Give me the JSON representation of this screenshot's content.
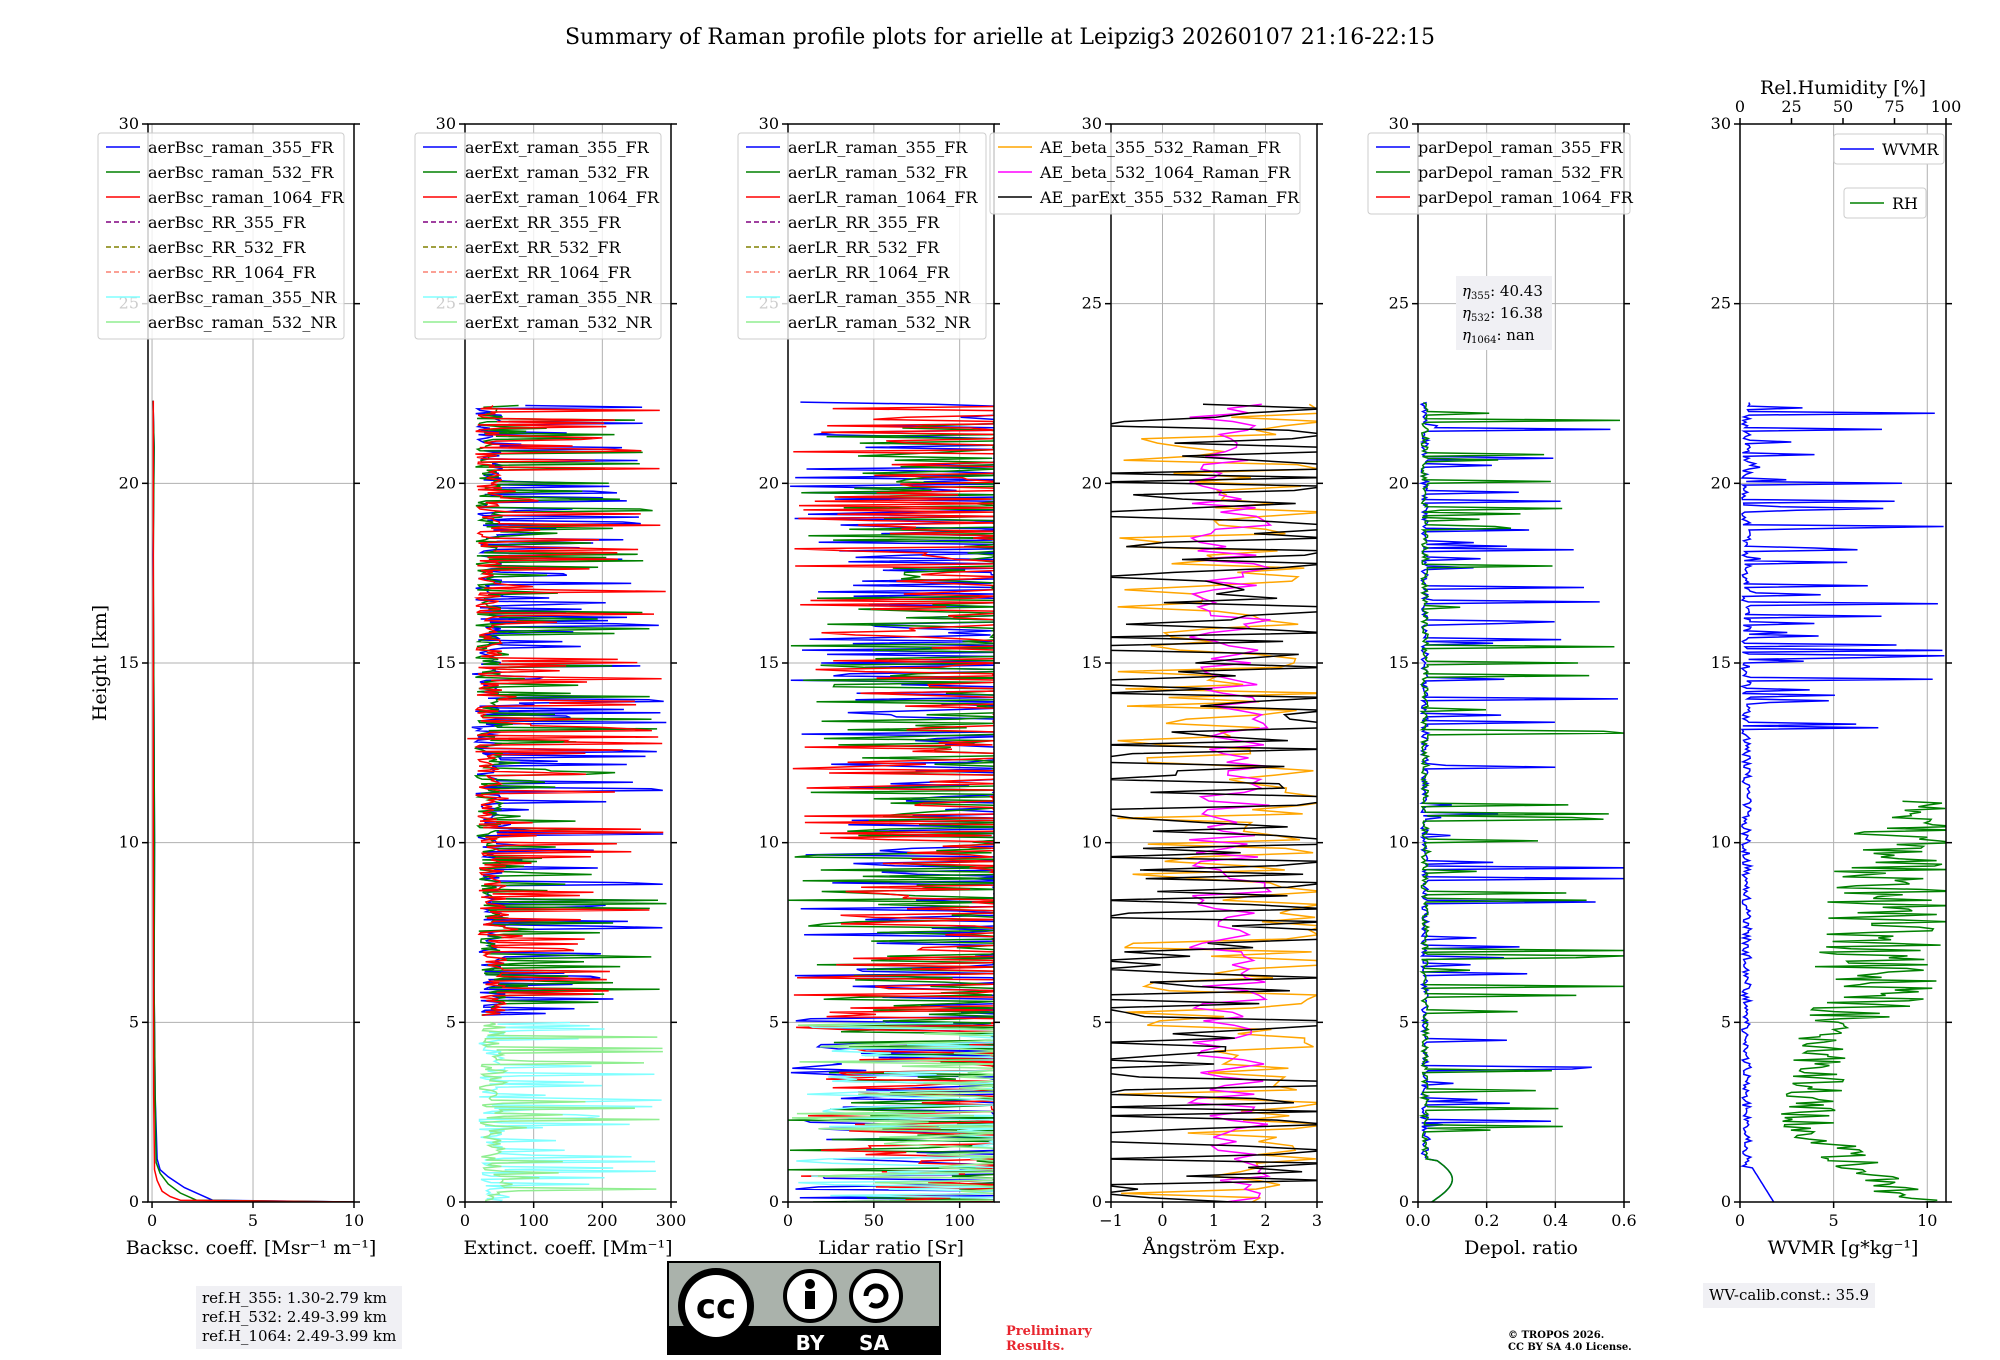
{
  "title": "Summary of Raman profile plots for arielle at Leipzig3 20260107 21:16-22:15",
  "colors": {
    "blue": "#0000ff",
    "green": "#008000",
    "red": "#ff0000",
    "purple": "#800080",
    "olive": "#808000",
    "salmon": "#fa8072",
    "cyan": "#80ffff",
    "lightgreen": "#90ee90",
    "orange": "#ffa500",
    "magenta": "#ff00ff",
    "black": "#000000",
    "grid": "#b0b0b0"
  },
  "chart_data": [
    {
      "type": "line",
      "id": "bsc",
      "xlabel": "Backsc. coeff. [Msr⁻¹ m⁻¹]",
      "ylabel": "Height [km]",
      "xlim": [
        -0.2,
        10
      ],
      "ylim": [
        0,
        30
      ],
      "xticks": [
        0,
        5,
        10
      ],
      "yticks": [
        0,
        5,
        10,
        15,
        20,
        25,
        30
      ],
      "legend": [
        {
          "label": "aerBsc_raman_355_FR",
          "color": "blue",
          "style": "solid"
        },
        {
          "label": "aerBsc_raman_532_FR",
          "color": "green",
          "style": "solid"
        },
        {
          "label": "aerBsc_raman_1064_FR",
          "color": "red",
          "style": "solid"
        },
        {
          "label": "aerBsc_RR_355_FR",
          "color": "purple",
          "style": "dashed"
        },
        {
          "label": "aerBsc_RR_532_FR",
          "color": "olive",
          "style": "dashed"
        },
        {
          "label": "aerBsc_RR_1064_FR",
          "color": "salmon",
          "style": "dashed"
        },
        {
          "label": "aerBsc_raman_355_NR",
          "color": "cyan",
          "style": "solid"
        },
        {
          "label": "aerBsc_raman_532_NR",
          "color": "lightgreen",
          "style": "solid"
        }
      ],
      "series": [
        {
          "name": "aerBsc_raman_355_FR",
          "color": "blue",
          "x": [
            10,
            3,
            2.4,
            1.6,
            0.8,
            0.4,
            0.25,
            0.15,
            0.1,
            0.12,
            0.08,
            0.05,
            0.1,
            0.05
          ],
          "y": [
            0,
            0.05,
            0.2,
            0.4,
            0.7,
            0.9,
            1.2,
            3,
            6,
            10,
            15,
            18,
            21,
            22.3
          ]
        },
        {
          "name": "aerBsc_raman_532_FR",
          "color": "green",
          "x": [
            10,
            2.2,
            1.4,
            0.8,
            0.4,
            0.2,
            0.15,
            0.1,
            0.12,
            0.08,
            0.06,
            0.1,
            0.05
          ],
          "y": [
            0,
            0.05,
            0.25,
            0.5,
            0.8,
            1.1,
            3,
            6,
            10,
            15,
            18,
            21,
            22.3
          ]
        },
        {
          "name": "aerBsc_raman_1064_FR",
          "color": "red",
          "x": [
            10,
            1.4,
            0.9,
            0.5,
            0.25,
            0.12,
            0.08,
            0.06,
            0.06,
            0.06
          ],
          "y": [
            0,
            0.05,
            0.15,
            0.3,
            0.6,
            0.9,
            3,
            10,
            18,
            22.3
          ]
        }
      ]
    },
    {
      "type": "line",
      "id": "ext",
      "xlabel": "Extinct. coeff. [Mm⁻¹]",
      "ylabel": "",
      "xlim": [
        0,
        300
      ],
      "ylim": [
        0,
        30
      ],
      "xticks": [
        0,
        100,
        200,
        300
      ],
      "yticks": [
        0,
        5,
        10,
        15,
        20,
        25,
        30
      ],
      "legend": [
        {
          "label": "aerExt_raman_355_FR",
          "color": "blue",
          "style": "solid"
        },
        {
          "label": "aerExt_raman_532_FR",
          "color": "green",
          "style": "solid"
        },
        {
          "label": "aerExt_raman_1064_FR",
          "color": "red",
          "style": "solid"
        },
        {
          "label": "aerExt_RR_355_FR",
          "color": "purple",
          "style": "dashed"
        },
        {
          "label": "aerExt_RR_532_FR",
          "color": "olive",
          "style": "dashed"
        },
        {
          "label": "aerExt_RR_1064_FR",
          "color": "salmon",
          "style": "dashed"
        },
        {
          "label": "aerExt_raman_355_NR",
          "color": "cyan",
          "style": "solid"
        },
        {
          "label": "aerExt_raman_532_NR",
          "color": "lightgreen",
          "style": "solid"
        }
      ],
      "series": [
        {
          "name": "aerExt_raman_355_FR",
          "color": "blue",
          "range": [
            5.2,
            22.2
          ],
          "max": 300
        },
        {
          "name": "aerExt_raman_532_FR",
          "color": "green",
          "range": [
            5.2,
            22.2
          ],
          "max": 300
        },
        {
          "name": "aerExt_raman_1064_FR",
          "color": "red",
          "range": [
            5.2,
            22.2
          ],
          "max": 300
        },
        {
          "name": "aerExt_raman_355_NR",
          "color": "cyan",
          "range": [
            0,
            5
          ],
          "max": 300
        },
        {
          "name": "aerExt_raman_532_NR",
          "color": "lightgreen",
          "range": [
            0,
            5
          ],
          "max": 300
        }
      ]
    },
    {
      "type": "line",
      "id": "lr",
      "xlabel": "Lidar ratio [Sr]",
      "ylabel": "",
      "xlim": [
        0,
        120
      ],
      "ylim": [
        0,
        30
      ],
      "xticks": [
        0,
        50,
        100
      ],
      "yticks": [
        0,
        5,
        10,
        15,
        20,
        25,
        30
      ],
      "legend": [
        {
          "label": "aerLR_raman_355_FR",
          "color": "blue",
          "style": "solid"
        },
        {
          "label": "aerLR_raman_532_FR",
          "color": "green",
          "style": "solid"
        },
        {
          "label": "aerLR_raman_1064_FR",
          "color": "red",
          "style": "solid"
        },
        {
          "label": "aerLR_RR_355_FR",
          "color": "purple",
          "style": "dashed"
        },
        {
          "label": "aerLR_RR_532_FR",
          "color": "olive",
          "style": "dashed"
        },
        {
          "label": "aerLR_RR_1064_FR",
          "color": "salmon",
          "style": "dashed"
        },
        {
          "label": "aerLR_raman_355_NR",
          "color": "cyan",
          "style": "solid"
        },
        {
          "label": "aerLR_raman_532_NR",
          "color": "lightgreen",
          "style": "solid"
        }
      ],
      "series": [
        {
          "name": "aerLR_raman_355_FR",
          "color": "blue",
          "range": [
            0,
            22.3
          ],
          "max": 120
        },
        {
          "name": "aerLR_raman_532_FR",
          "color": "green",
          "range": [
            0,
            22.3
          ],
          "max": 120
        },
        {
          "name": "aerLR_raman_1064_FR",
          "color": "red",
          "range": [
            0,
            22.3
          ],
          "max": 120
        },
        {
          "name": "aerLR_raman_355_NR",
          "color": "cyan",
          "range": [
            0,
            5
          ],
          "max": 120
        },
        {
          "name": "aerLR_raman_532_NR",
          "color": "lightgreen",
          "range": [
            0,
            5
          ],
          "max": 120
        }
      ]
    },
    {
      "type": "line",
      "id": "ae",
      "xlabel": "Ångström Exp.",
      "ylabel": "",
      "xlim": [
        -1,
        3
      ],
      "ylim": [
        0,
        30
      ],
      "xticks": [
        -1,
        0,
        1,
        2,
        3
      ],
      "yticks": [
        0,
        5,
        10,
        15,
        20,
        25,
        30
      ],
      "legend": [
        {
          "label": "AE_beta_355_532_Raman_FR",
          "color": "orange",
          "style": "solid"
        },
        {
          "label": "AE_beta_532_1064_Raman_FR",
          "color": "magenta",
          "style": "solid"
        },
        {
          "label": "AE_parExt_355_532_Raman_FR",
          "color": "black",
          "style": "solid"
        }
      ],
      "series": [
        {
          "name": "AE_beta_355_532_Raman_FR",
          "color": "orange",
          "range": [
            0,
            22.3
          ]
        },
        {
          "name": "AE_beta_532_1064_Raman_FR",
          "color": "magenta",
          "range": [
            0,
            22.3
          ]
        },
        {
          "name": "AE_parExt_355_532_Raman_FR",
          "color": "black",
          "range": [
            0,
            22.3
          ]
        }
      ]
    },
    {
      "type": "line",
      "id": "dep",
      "xlabel": "Depol. ratio",
      "ylabel": "",
      "xlim": [
        0,
        0.6
      ],
      "ylim": [
        0,
        30
      ],
      "xticks": [
        0.0,
        0.2,
        0.4,
        0.6
      ],
      "xtick_labels": [
        "0.0",
        "0.2",
        "0.4",
        "0.6"
      ],
      "yticks": [
        0,
        5,
        10,
        15,
        20,
        25,
        30
      ],
      "legend": [
        {
          "label": "parDepol_raman_355_FR",
          "color": "blue",
          "style": "solid"
        },
        {
          "label": "parDepol_raman_532_FR",
          "color": "green",
          "style": "solid"
        },
        {
          "label": "parDepol_raman_1064_FR",
          "color": "red",
          "style": "solid"
        }
      ],
      "series": [
        {
          "name": "parDepol_raman_355_FR",
          "color": "blue",
          "range": [
            0,
            22.3
          ]
        },
        {
          "name": "parDepol_raman_532_FR",
          "color": "green",
          "range": [
            0,
            22.3
          ]
        }
      ],
      "eta": {
        "355": "40.43",
        "532": "16.38",
        "1064": "nan"
      }
    },
    {
      "type": "line",
      "id": "wv",
      "xlabel": "WVMR [g*kg⁻¹]",
      "ylabel": "",
      "xlim": [
        0,
        11
      ],
      "ylim": [
        0,
        30
      ],
      "xticks": [
        0,
        5,
        10
      ],
      "yticks": [
        0,
        5,
        10,
        15,
        20,
        25,
        30
      ],
      "top_axis": {
        "label": "Rel.Humidity [%]",
        "xlim": [
          0,
          100
        ],
        "ticks": [
          0,
          25,
          50,
          75,
          100
        ]
      },
      "legend": [
        {
          "label": "WVMR",
          "color": "blue",
          "style": "solid"
        },
        {
          "label": "RH",
          "color": "green",
          "style": "solid"
        }
      ],
      "series": [
        {
          "name": "WVMR",
          "color": "blue",
          "range": [
            0,
            22.3
          ]
        },
        {
          "name": "RH",
          "color": "green",
          "range": [
            0,
            11.2
          ]
        }
      ]
    }
  ],
  "annotations": {
    "ref_h_355": "ref.H_355: 1.30-2.79 km",
    "ref_h_532": "ref.H_532: 2.49-3.99 km",
    "ref_h_1064": "ref.H_1064: 2.49-3.99 km",
    "wv_calib": "WV-calib.const.: 35.9",
    "preliminary_1": "Preliminary",
    "preliminary_2": "Results.",
    "copyright_1": "© TROPOS 2026.",
    "copyright_2": "CC BY SA 4.0 License.",
    "cc_by": "BY",
    "cc_sa": "SA"
  }
}
